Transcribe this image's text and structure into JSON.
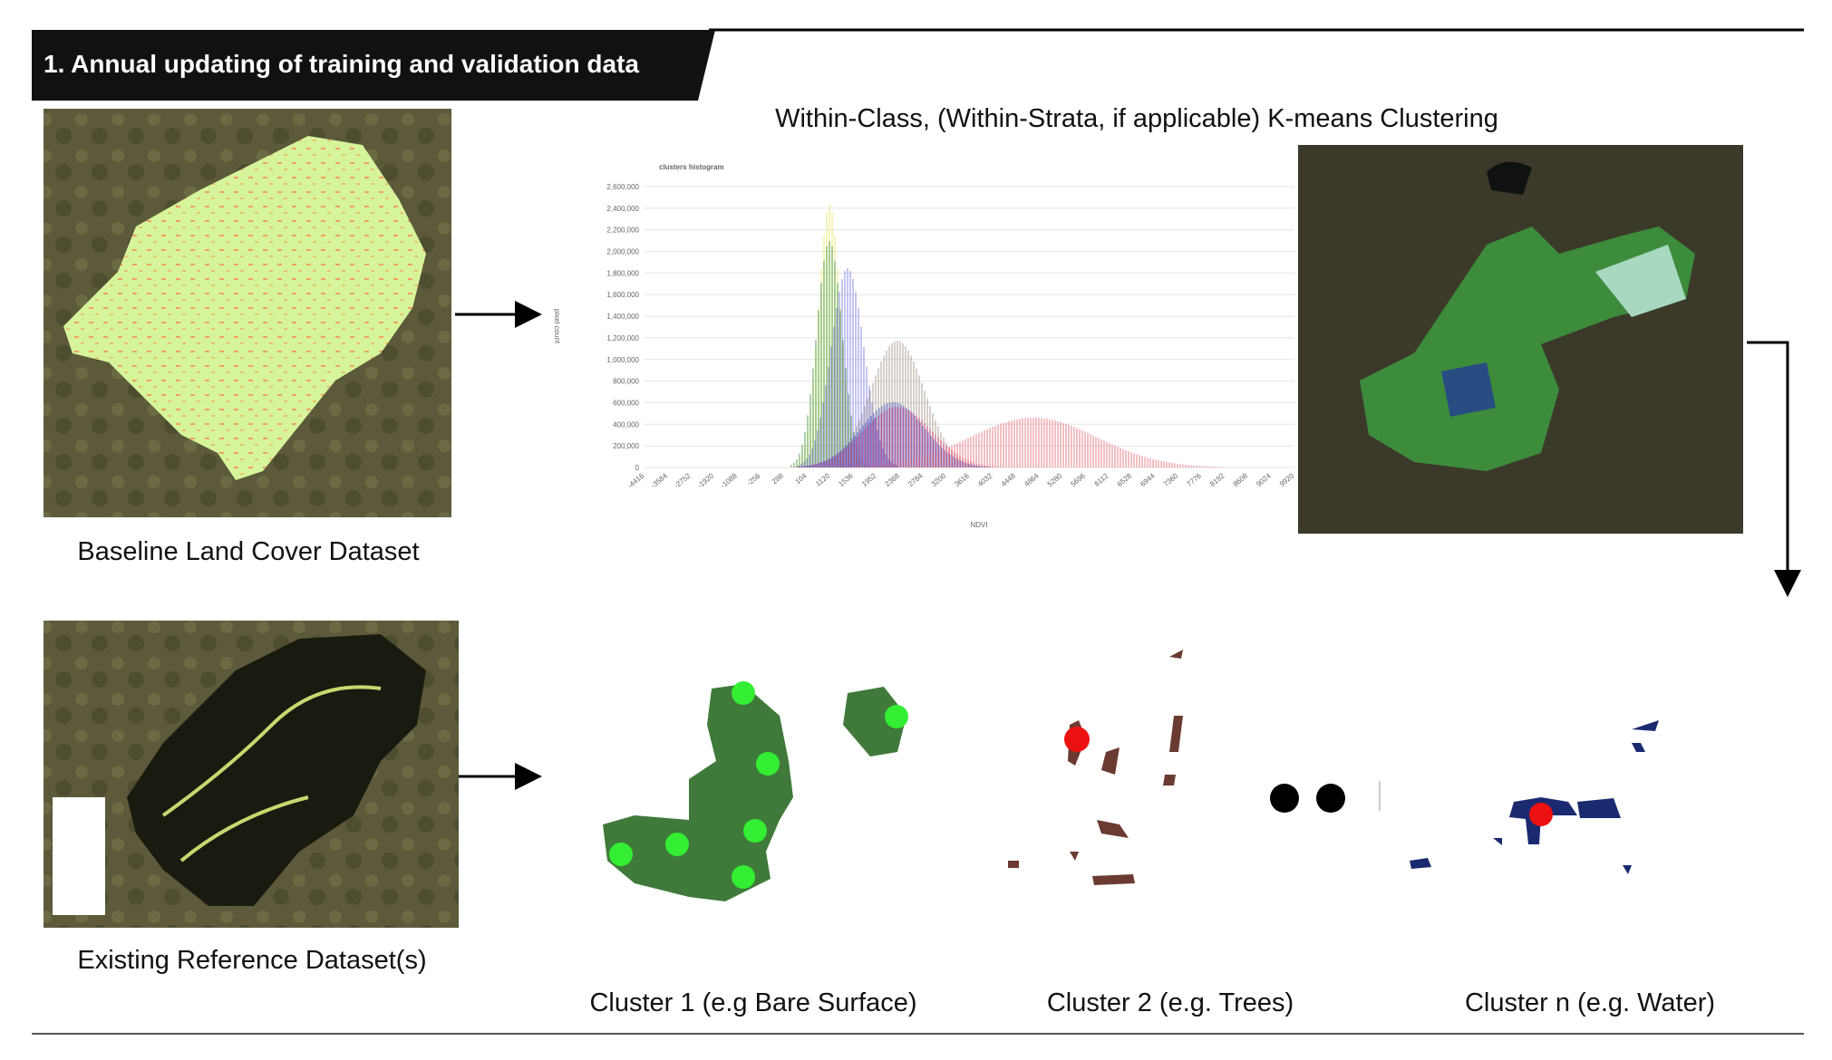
{
  "header": {
    "title": "1. Annual updating of training and validation data"
  },
  "clustering_title": "Within-Class, (Within-Strata, if applicable) K-means Clustering",
  "histogram": {
    "title": "clusters histogram",
    "y_label": "pixel count",
    "x_label": "NDVI",
    "yticks": [
      "0",
      "200,000",
      "400,000",
      "600,000",
      "800,000",
      "1,000,000",
      "1,200,000",
      "1,400,000",
      "1,600,000",
      "1,800,000",
      "2,000,000",
      "2,200,000",
      "2,400,000",
      "2,600,000"
    ],
    "xticks": [
      "-4416",
      "-3584",
      "-2752",
      "-1920",
      "-1088",
      "-256",
      "288",
      "104",
      "1120",
      "1536",
      "1952",
      "2368",
      "2784",
      "3200",
      "3616",
      "4032",
      "4448",
      "4864",
      "5280",
      "5696",
      "6112",
      "6528",
      "6944",
      "7360",
      "7776",
      "8192",
      "8608",
      "9024",
      "9920"
    ]
  },
  "panels": {
    "baseline": "Baseline Land Cover Dataset",
    "reference": "Existing Reference Dataset(s)"
  },
  "clusters": [
    "Cluster 1 (e.g Bare Surface)",
    "Cluster 2 (e.g. Trees)",
    "Cluster n (e.g. Water)"
  ]
}
